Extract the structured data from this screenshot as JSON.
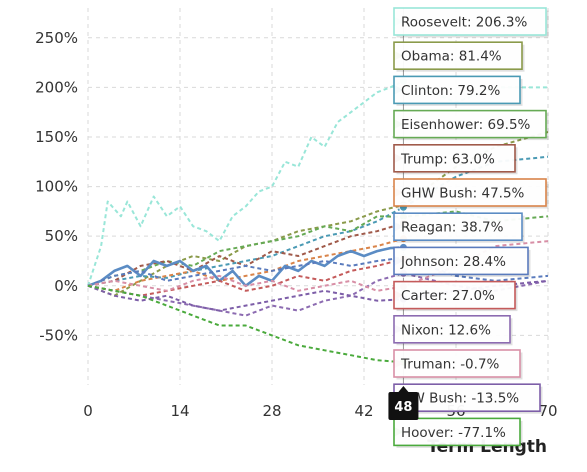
{
  "chart_data": {
    "type": "line",
    "xlabel": "Term Length",
    "ylabel": "",
    "xlim": [
      0,
      70
    ],
    "ylim": [
      -100,
      280
    ],
    "x_ticks": [
      "0",
      "14",
      "28",
      "42",
      "56",
      "70"
    ],
    "y_ticks": [
      "250%",
      "200%",
      "150%",
      "100%",
      "50%",
      "0%",
      "-50%"
    ],
    "y_tick_values": [
      250,
      200,
      150,
      100,
      50,
      0,
      -50
    ],
    "x_tick_values": [
      0,
      14,
      28,
      42,
      56,
      70
    ],
    "hover_month": 48,
    "hover_label": "48",
    "series": [
      {
        "name": "Roosevelt",
        "label": "Roosevelt: 206.3%",
        "color": "#99e6d8",
        "dash": true,
        "points": [
          [
            0,
            0
          ],
          [
            2,
            40
          ],
          [
            3,
            85
          ],
          [
            5,
            70
          ],
          [
            6,
            85
          ],
          [
            8,
            60
          ],
          [
            10,
            90
          ],
          [
            12,
            70
          ],
          [
            14,
            80
          ],
          [
            16,
            60
          ],
          [
            18,
            55
          ],
          [
            20,
            45
          ],
          [
            22,
            70
          ],
          [
            24,
            80
          ],
          [
            26,
            95
          ],
          [
            28,
            100
          ],
          [
            30,
            125
          ],
          [
            32,
            120
          ],
          [
            34,
            150
          ],
          [
            36,
            140
          ],
          [
            38,
            165
          ],
          [
            40,
            175
          ],
          [
            42,
            185
          ],
          [
            44,
            195
          ],
          [
            46,
            200
          ],
          [
            48,
            206.3
          ],
          [
            56,
            185
          ],
          [
            62,
            200
          ],
          [
            70,
            200
          ]
        ]
      },
      {
        "name": "Obama",
        "label": "Obama: 81.4%",
        "color": "#8a9a4a",
        "dash": true,
        "points": [
          [
            0,
            0
          ],
          [
            4,
            -10
          ],
          [
            8,
            5
          ],
          [
            12,
            20
          ],
          [
            16,
            30
          ],
          [
            20,
            25
          ],
          [
            24,
            40
          ],
          [
            28,
            45
          ],
          [
            32,
            55
          ],
          [
            36,
            60
          ],
          [
            40,
            65
          ],
          [
            44,
            75
          ],
          [
            48,
            81.4
          ],
          [
            56,
            120
          ],
          [
            62,
            140
          ],
          [
            70,
            155
          ]
        ]
      },
      {
        "name": "Clinton",
        "label": "Clinton: 79.2%",
        "color": "#4a9ab4",
        "dash": true,
        "points": [
          [
            0,
            0
          ],
          [
            4,
            5
          ],
          [
            8,
            10
          ],
          [
            12,
            8
          ],
          [
            16,
            15
          ],
          [
            20,
            20
          ],
          [
            24,
            25
          ],
          [
            28,
            30
          ],
          [
            32,
            40
          ],
          [
            36,
            50
          ],
          [
            40,
            55
          ],
          [
            44,
            65
          ],
          [
            48,
            79.2
          ],
          [
            56,
            110
          ],
          [
            62,
            125
          ],
          [
            70,
            130
          ]
        ]
      },
      {
        "name": "Eisenhower",
        "label": "Eisenhower: 69.5%",
        "color": "#66aa55",
        "dash": true,
        "points": [
          [
            0,
            0
          ],
          [
            4,
            10
          ],
          [
            8,
            15
          ],
          [
            12,
            25
          ],
          [
            16,
            20
          ],
          [
            20,
            35
          ],
          [
            24,
            40
          ],
          [
            28,
            45
          ],
          [
            32,
            50
          ],
          [
            36,
            60
          ],
          [
            40,
            55
          ],
          [
            44,
            70
          ],
          [
            48,
            69.5
          ],
          [
            56,
            75
          ],
          [
            62,
            65
          ],
          [
            70,
            70
          ]
        ]
      },
      {
        "name": "Trump",
        "label": "Trump: 63.0%",
        "color": "#a05a4a",
        "dash": true,
        "points": [
          [
            0,
            0
          ],
          [
            4,
            5
          ],
          [
            8,
            20
          ],
          [
            12,
            25
          ],
          [
            16,
            15
          ],
          [
            20,
            30
          ],
          [
            24,
            20
          ],
          [
            28,
            35
          ],
          [
            32,
            30
          ],
          [
            36,
            40
          ],
          [
            40,
            50
          ],
          [
            44,
            55
          ],
          [
            48,
            63.0
          ]
        ]
      },
      {
        "name": "GHW Bush",
        "label": "GHW Bush: 47.5%",
        "color": "#d9844a",
        "dash": true,
        "points": [
          [
            0,
            0
          ],
          [
            4,
            -5
          ],
          [
            8,
            5
          ],
          [
            12,
            10
          ],
          [
            16,
            15
          ],
          [
            20,
            5
          ],
          [
            24,
            10
          ],
          [
            28,
            15
          ],
          [
            32,
            25
          ],
          [
            36,
            30
          ],
          [
            40,
            35
          ],
          [
            44,
            40
          ],
          [
            48,
            47.5
          ]
        ]
      },
      {
        "name": "Reagan",
        "label": "Reagan: 38.7%",
        "color": "#5b8cc4",
        "dash": false,
        "points": [
          [
            0,
            0
          ],
          [
            2,
            5
          ],
          [
            4,
            15
          ],
          [
            6,
            20
          ],
          [
            8,
            10
          ],
          [
            10,
            25
          ],
          [
            12,
            20
          ],
          [
            14,
            25
          ],
          [
            16,
            15
          ],
          [
            18,
            20
          ],
          [
            20,
            5
          ],
          [
            22,
            15
          ],
          [
            24,
            0
          ],
          [
            26,
            10
          ],
          [
            28,
            5
          ],
          [
            30,
            20
          ],
          [
            32,
            15
          ],
          [
            34,
            25
          ],
          [
            36,
            20
          ],
          [
            38,
            30
          ],
          [
            40,
            35
          ],
          [
            42,
            30
          ],
          [
            44,
            35
          ],
          [
            46,
            38
          ],
          [
            48,
            38.7
          ]
        ]
      },
      {
        "name": "Johnson",
        "label": "Johnson: 28.4%",
        "color": "#5a7bbd",
        "dash": true,
        "points": [
          [
            0,
            0
          ],
          [
            4,
            10
          ],
          [
            8,
            15
          ],
          [
            12,
            5
          ],
          [
            16,
            10
          ],
          [
            20,
            15
          ],
          [
            24,
            20
          ],
          [
            28,
            15
          ],
          [
            32,
            20
          ],
          [
            36,
            25
          ],
          [
            40,
            20
          ],
          [
            44,
            25
          ],
          [
            48,
            28.4
          ],
          [
            56,
            10
          ],
          [
            62,
            5
          ],
          [
            70,
            10
          ]
        ]
      },
      {
        "name": "Carter",
        "label": "Carter: 27.0%",
        "color": "#c45a5a",
        "dash": true,
        "points": [
          [
            0,
            0
          ],
          [
            4,
            -5
          ],
          [
            8,
            -10
          ],
          [
            12,
            -5
          ],
          [
            16,
            0
          ],
          [
            20,
            5
          ],
          [
            24,
            -5
          ],
          [
            28,
            0
          ],
          [
            32,
            10
          ],
          [
            36,
            5
          ],
          [
            40,
            15
          ],
          [
            44,
            20
          ],
          [
            48,
            27.0
          ]
        ]
      },
      {
        "name": "Nixon",
        "label": "Nixon: 12.6%",
        "color": "#8c6bb1",
        "dash": true,
        "points": [
          [
            0,
            0
          ],
          [
            4,
            -5
          ],
          [
            8,
            -10
          ],
          [
            12,
            -15
          ],
          [
            16,
            -20
          ],
          [
            20,
            -25
          ],
          [
            24,
            -30
          ],
          [
            28,
            -20
          ],
          [
            32,
            -25
          ],
          [
            36,
            -15
          ],
          [
            40,
            -10
          ],
          [
            44,
            5
          ],
          [
            48,
            12.6
          ],
          [
            56,
            0
          ],
          [
            62,
            -5
          ],
          [
            70,
            5
          ]
        ]
      },
      {
        "name": "Truman",
        "label": "Truman: -0.7%",
        "color": "#d88fa6",
        "dash": true,
        "points": [
          [
            0,
            0
          ],
          [
            4,
            5
          ],
          [
            8,
            0
          ],
          [
            12,
            -5
          ],
          [
            16,
            5
          ],
          [
            20,
            10
          ],
          [
            24,
            0
          ],
          [
            28,
            5
          ],
          [
            32,
            -5
          ],
          [
            36,
            0
          ],
          [
            40,
            5
          ],
          [
            44,
            -5
          ],
          [
            48,
            -0.7
          ],
          [
            56,
            20
          ],
          [
            62,
            40
          ],
          [
            70,
            45
          ]
        ]
      },
      {
        "name": "GW Bush",
        "label": "GW Bush: -13.5%",
        "color": "#7d5ea8",
        "dash": true,
        "points": [
          [
            0,
            0
          ],
          [
            4,
            -10
          ],
          [
            8,
            -15
          ],
          [
            12,
            -10
          ],
          [
            16,
            -20
          ],
          [
            20,
            -25
          ],
          [
            24,
            -20
          ],
          [
            28,
            -15
          ],
          [
            32,
            -10
          ],
          [
            36,
            -5
          ],
          [
            40,
            -10
          ],
          [
            44,
            -15
          ],
          [
            48,
            -13.5
          ],
          [
            56,
            -5
          ],
          [
            62,
            0
          ],
          [
            70,
            5
          ]
        ]
      },
      {
        "name": "Hoover",
        "label": "Hoover: -77.1%",
        "color": "#4aaa3c",
        "dash": true,
        "points": [
          [
            0,
            0
          ],
          [
            4,
            -5
          ],
          [
            8,
            -10
          ],
          [
            12,
            -20
          ],
          [
            16,
            -30
          ],
          [
            20,
            -40
          ],
          [
            24,
            -40
          ],
          [
            28,
            -50
          ],
          [
            32,
            -60
          ],
          [
            36,
            -65
          ],
          [
            40,
            -70
          ],
          [
            44,
            -75
          ],
          [
            48,
            -77.1
          ]
        ]
      }
    ],
    "grid": true,
    "legend": "tooltip-right"
  }
}
